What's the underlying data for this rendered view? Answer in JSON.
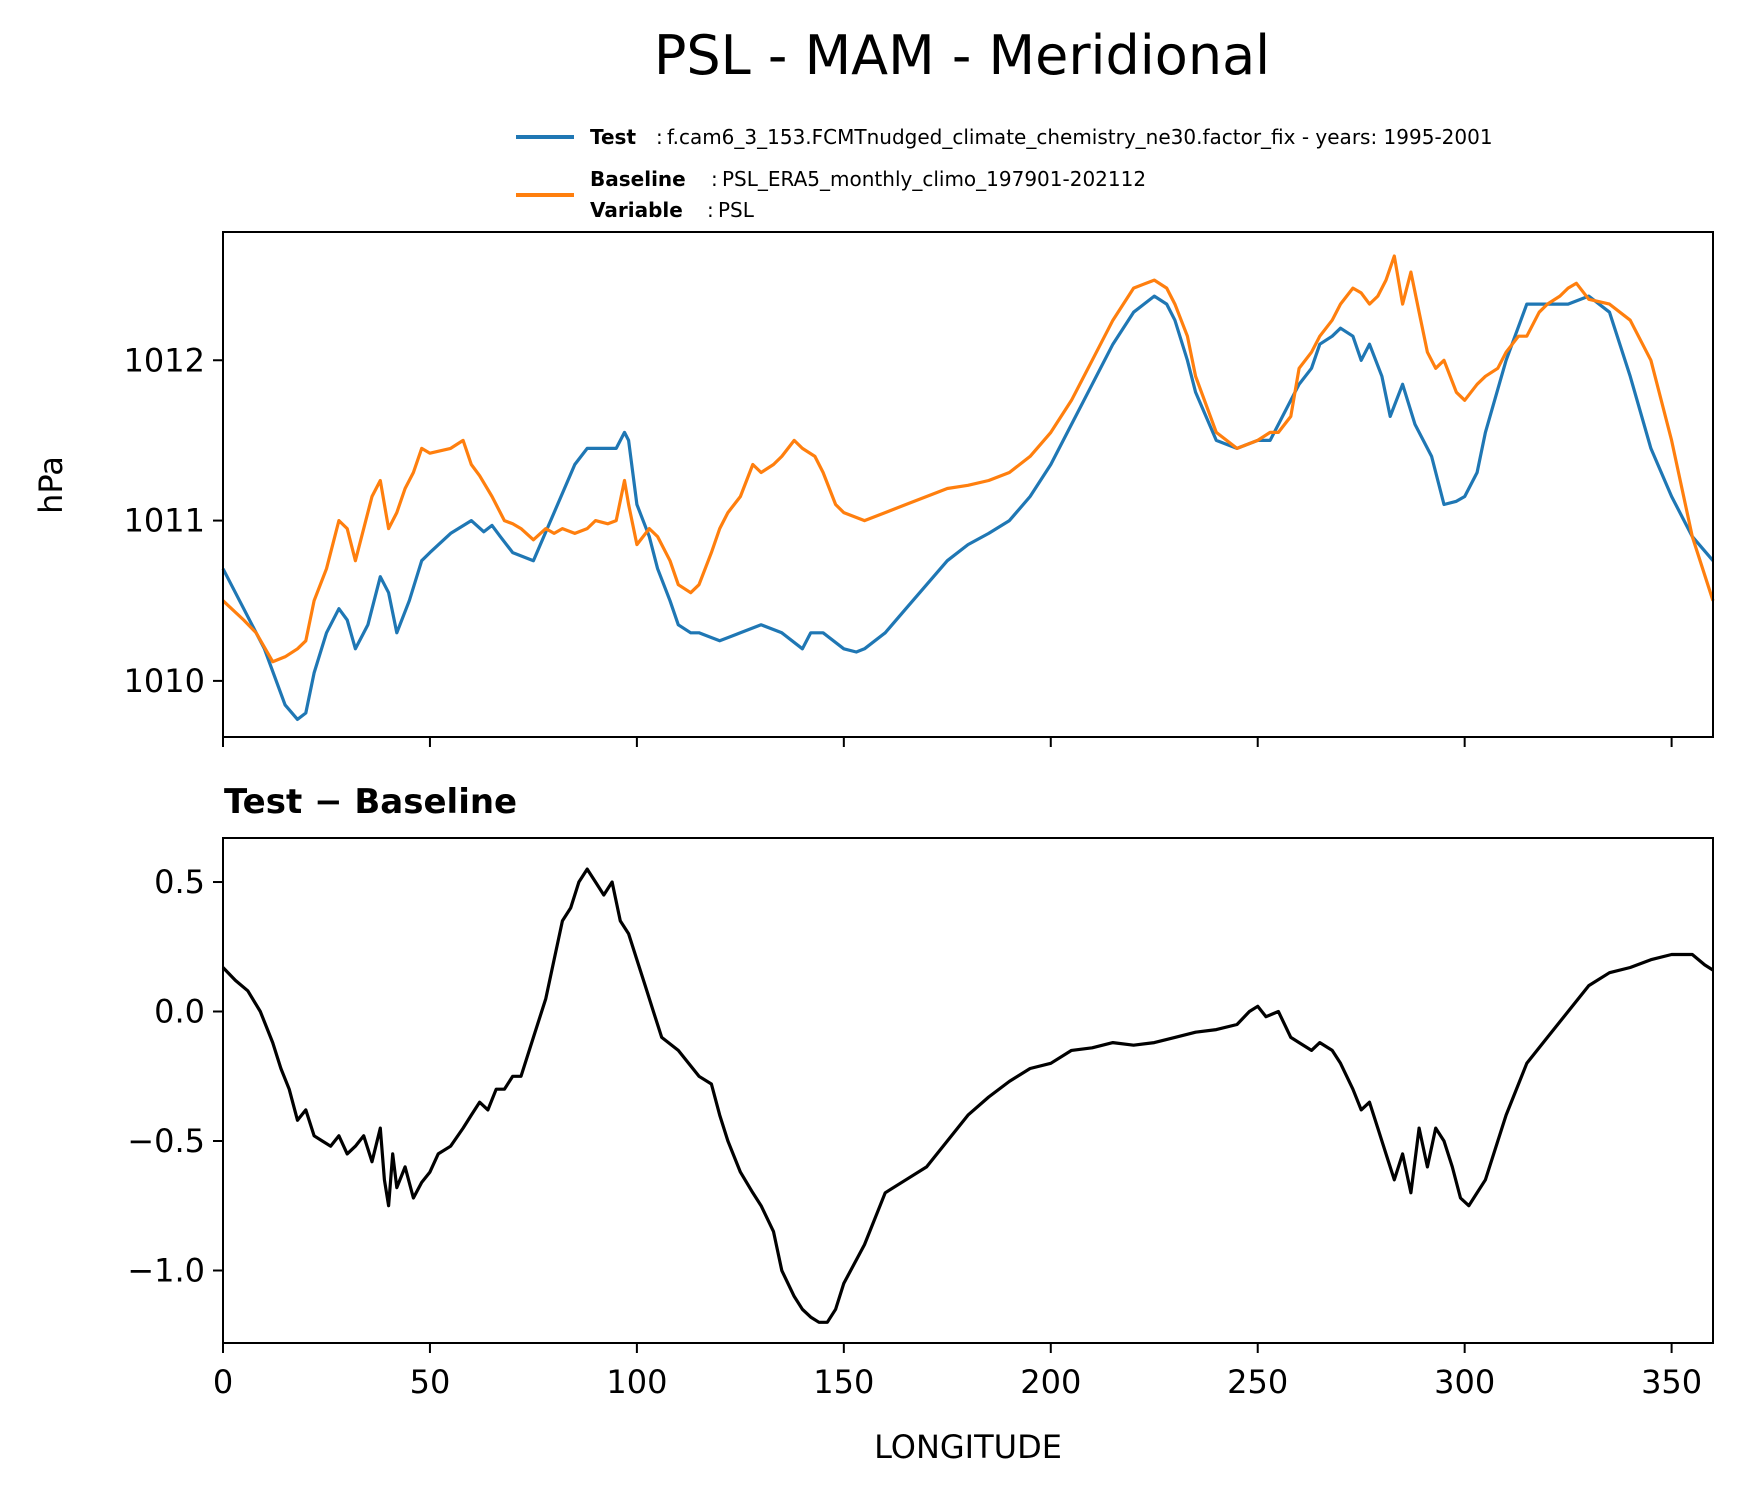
{
  "chart_data": [
    {
      "type": "line",
      "title": "PSL - MAM - Meridional",
      "ylabel": "hPa",
      "xlabel": "",
      "xlim": [
        0,
        360
      ],
      "ylim": [
        1009.65,
        1012.8
      ],
      "yticks": [
        1010,
        1011,
        1012
      ],
      "ytick_labels": [
        "1010",
        "1011",
        "1012"
      ],
      "xticks": [
        0,
        50,
        100,
        150,
        200,
        250,
        300,
        350
      ],
      "legend": {
        "placement": "top-right-outside",
        "entries": [
          {
            "key": "Test",
            "text": "f.cam6_3_153.FCMTnudged_climate_chemistry_ne30.factor_fix - years: 1995-2001",
            "color": "#1f77b4"
          },
          {
            "key": "Baseline",
            "text": "PSL_ERA5_monthly_climo_197901-202112",
            "color": "#ff7f0e"
          },
          {
            "key": "Variable",
            "text": "PSL",
            "color": null
          }
        ]
      },
      "series": [
        {
          "name": "Test",
          "color": "#1f77b4",
          "x": [
            0,
            5,
            10,
            15,
            18,
            20,
            22,
            25,
            28,
            30,
            32,
            35,
            38,
            40,
            42,
            45,
            48,
            50,
            55,
            60,
            63,
            65,
            67,
            70,
            75,
            80,
            85,
            88,
            90,
            93,
            95,
            97,
            98,
            100,
            103,
            105,
            108,
            110,
            113,
            115,
            120,
            125,
            130,
            135,
            140,
            142,
            145,
            150,
            153,
            155,
            160,
            165,
            170,
            175,
            180,
            185,
            190,
            195,
            200,
            205,
            210,
            215,
            220,
            225,
            228,
            230,
            233,
            235,
            240,
            245,
            250,
            253,
            255,
            258,
            260,
            263,
            265,
            268,
            270,
            273,
            275,
            277,
            280,
            282,
            285,
            288,
            290,
            292,
            295,
            298,
            300,
            303,
            305,
            310,
            315,
            320,
            325,
            330,
            335,
            340,
            345,
            350,
            355,
            360
          ],
          "values": [
            1010.7,
            1010.45,
            1010.2,
            1009.85,
            1009.76,
            1009.8,
            1010.05,
            1010.3,
            1010.45,
            1010.38,
            1010.2,
            1010.35,
            1010.65,
            1010.55,
            1010.3,
            1010.5,
            1010.75,
            1010.8,
            1010.92,
            1011.0,
            1010.93,
            1010.97,
            1010.9,
            1010.8,
            1010.75,
            1011.05,
            1011.35,
            1011.45,
            1011.45,
            1011.45,
            1011.45,
            1011.55,
            1011.5,
            1011.1,
            1010.9,
            1010.7,
            1010.5,
            1010.35,
            1010.3,
            1010.3,
            1010.25,
            1010.3,
            1010.35,
            1010.3,
            1010.2,
            1010.3,
            1010.3,
            1010.2,
            1010.18,
            1010.2,
            1010.3,
            1010.45,
            1010.6,
            1010.75,
            1010.85,
            1010.92,
            1011.0,
            1011.15,
            1011.35,
            1011.6,
            1011.85,
            1012.1,
            1012.3,
            1012.4,
            1012.35,
            1012.25,
            1012.0,
            1011.8,
            1011.5,
            1011.45,
            1011.5,
            1011.5,
            1011.6,
            1011.75,
            1011.85,
            1011.95,
            1012.1,
            1012.15,
            1012.2,
            1012.15,
            1012.0,
            1012.1,
            1011.9,
            1011.65,
            1011.85,
            1011.6,
            1011.5,
            1011.4,
            1011.1,
            1011.12,
            1011.15,
            1011.3,
            1011.55,
            1012.0,
            1012.35,
            1012.35,
            1012.35,
            1012.4,
            1012.3,
            1011.9,
            1011.45,
            1011.15,
            1010.9,
            1010.75
          ]
        },
        {
          "name": "Baseline",
          "color": "#ff7f0e",
          "x": [
            0,
            5,
            8,
            12,
            15,
            18,
            20,
            22,
            25,
            28,
            30,
            32,
            34,
            36,
            38,
            40,
            42,
            44,
            46,
            48,
            50,
            55,
            58,
            60,
            62,
            65,
            68,
            70,
            72,
            75,
            78,
            80,
            82,
            85,
            88,
            90,
            93,
            95,
            97,
            98,
            100,
            103,
            105,
            108,
            110,
            113,
            115,
            118,
            120,
            122,
            125,
            128,
            130,
            133,
            135,
            138,
            140,
            143,
            145,
            148,
            150,
            155,
            160,
            165,
            170,
            175,
            180,
            185,
            190,
            195,
            200,
            205,
            210,
            215,
            220,
            225,
            228,
            230,
            233,
            235,
            240,
            245,
            250,
            253,
            255,
            258,
            260,
            263,
            265,
            268,
            270,
            273,
            275,
            277,
            279,
            281,
            283,
            285,
            287,
            289,
            291,
            293,
            295,
            298,
            300,
            303,
            305,
            308,
            310,
            313,
            315,
            318,
            320,
            323,
            325,
            327,
            330,
            335,
            340,
            345,
            350,
            355,
            360
          ],
          "values": [
            1010.5,
            1010.38,
            1010.3,
            1010.12,
            1010.15,
            1010.2,
            1010.25,
            1010.5,
            1010.7,
            1011.0,
            1010.95,
            1010.75,
            1010.95,
            1011.15,
            1011.25,
            1010.95,
            1011.05,
            1011.2,
            1011.3,
            1011.45,
            1011.42,
            1011.45,
            1011.5,
            1011.35,
            1011.28,
            1011.15,
            1011.0,
            1010.98,
            1010.95,
            1010.88,
            1010.95,
            1010.92,
            1010.95,
            1010.92,
            1010.95,
            1011.0,
            1010.98,
            1011.0,
            1011.25,
            1011.1,
            1010.85,
            1010.95,
            1010.9,
            1010.75,
            1010.6,
            1010.55,
            1010.6,
            1010.8,
            1010.95,
            1011.05,
            1011.15,
            1011.35,
            1011.3,
            1011.35,
            1011.4,
            1011.5,
            1011.45,
            1011.4,
            1011.3,
            1011.1,
            1011.05,
            1011.0,
            1011.05,
            1011.1,
            1011.15,
            1011.2,
            1011.22,
            1011.25,
            1011.3,
            1011.4,
            1011.55,
            1011.75,
            1012.0,
            1012.25,
            1012.45,
            1012.5,
            1012.45,
            1012.35,
            1012.15,
            1011.9,
            1011.55,
            1011.45,
            1011.5,
            1011.55,
            1011.55,
            1011.65,
            1011.95,
            1012.05,
            1012.15,
            1012.25,
            1012.35,
            1012.45,
            1012.42,
            1012.35,
            1012.4,
            1012.5,
            1012.65,
            1012.35,
            1012.55,
            1012.3,
            1012.05,
            1011.95,
            1012.0,
            1011.8,
            1011.75,
            1011.85,
            1011.9,
            1011.95,
            1012.05,
            1012.15,
            1012.15,
            1012.3,
            1012.35,
            1012.4,
            1012.45,
            1012.48,
            1012.38,
            1012.35,
            1012.25,
            1012.0,
            1011.5,
            1010.9,
            1010.5
          ]
        }
      ]
    },
    {
      "type": "line",
      "title": "Test − Baseline",
      "xlabel": "LONGITUDE",
      "ylabel": "",
      "xlim": [
        0,
        360
      ],
      "ylim": [
        -1.28,
        0.67
      ],
      "yticks": [
        -1.0,
        -0.5,
        0.0,
        0.5
      ],
      "ytick_labels": [
        "−1.0",
        "−0.5",
        "0.0",
        "0.5"
      ],
      "xticks": [
        0,
        50,
        100,
        150,
        200,
        250,
        300,
        350
      ],
      "xtick_labels": [
        "0",
        "50",
        "100",
        "150",
        "200",
        "250",
        "300",
        "350"
      ],
      "series": [
        {
          "name": "Test − Baseline",
          "color": "#000000",
          "x": [
            0,
            3,
            6,
            9,
            12,
            14,
            16,
            18,
            20,
            22,
            24,
            26,
            28,
            30,
            32,
            34,
            36,
            38,
            39,
            40,
            41,
            42,
            44,
            46,
            48,
            50,
            52,
            55,
            58,
            60,
            62,
            64,
            66,
            68,
            70,
            72,
            75,
            78,
            80,
            82,
            84,
            86,
            88,
            90,
            92,
            94,
            96,
            98,
            100,
            102,
            104,
            106,
            110,
            115,
            118,
            120,
            122,
            125,
            128,
            130,
            133,
            135,
            138,
            140,
            142,
            144,
            146,
            148,
            150,
            155,
            160,
            165,
            170,
            175,
            180,
            185,
            190,
            195,
            200,
            205,
            210,
            215,
            220,
            225,
            230,
            235,
            240,
            245,
            248,
            250,
            252,
            255,
            258,
            260,
            263,
            265,
            268,
            270,
            273,
            275,
            277,
            279,
            281,
            283,
            285,
            287,
            289,
            291,
            293,
            295,
            297,
            299,
            301,
            303,
            305,
            310,
            315,
            320,
            325,
            330,
            335,
            340,
            345,
            350,
            355,
            358,
            360
          ],
          "values": [
            0.17,
            0.12,
            0.08,
            0.0,
            -0.12,
            -0.22,
            -0.3,
            -0.42,
            -0.38,
            -0.48,
            -0.5,
            -0.52,
            -0.48,
            -0.55,
            -0.52,
            -0.48,
            -0.58,
            -0.45,
            -0.65,
            -0.75,
            -0.55,
            -0.68,
            -0.6,
            -0.72,
            -0.66,
            -0.62,
            -0.55,
            -0.52,
            -0.45,
            -0.4,
            -0.35,
            -0.38,
            -0.3,
            -0.3,
            -0.25,
            -0.25,
            -0.1,
            0.05,
            0.2,
            0.35,
            0.4,
            0.5,
            0.55,
            0.5,
            0.45,
            0.5,
            0.35,
            0.3,
            0.2,
            0.1,
            0.0,
            -0.1,
            -0.15,
            -0.25,
            -0.28,
            -0.4,
            -0.5,
            -0.62,
            -0.7,
            -0.75,
            -0.85,
            -1.0,
            -1.1,
            -1.15,
            -1.18,
            -1.2,
            -1.2,
            -1.15,
            -1.05,
            -0.9,
            -0.7,
            -0.65,
            -0.6,
            -0.5,
            -0.4,
            -0.33,
            -0.27,
            -0.22,
            -0.2,
            -0.15,
            -0.14,
            -0.12,
            -0.13,
            -0.12,
            -0.1,
            -0.08,
            -0.07,
            -0.05,
            0.0,
            0.02,
            -0.02,
            0.0,
            -0.1,
            -0.12,
            -0.15,
            -0.12,
            -0.15,
            -0.2,
            -0.3,
            -0.38,
            -0.35,
            -0.45,
            -0.55,
            -0.65,
            -0.55,
            -0.7,
            -0.45,
            -0.6,
            -0.45,
            -0.5,
            -0.6,
            -0.72,
            -0.75,
            -0.7,
            -0.65,
            -0.4,
            -0.2,
            -0.1,
            0.0,
            0.1,
            0.15,
            0.17,
            0.2,
            0.22,
            0.22,
            0.18,
            0.16
          ]
        }
      ]
    }
  ]
}
